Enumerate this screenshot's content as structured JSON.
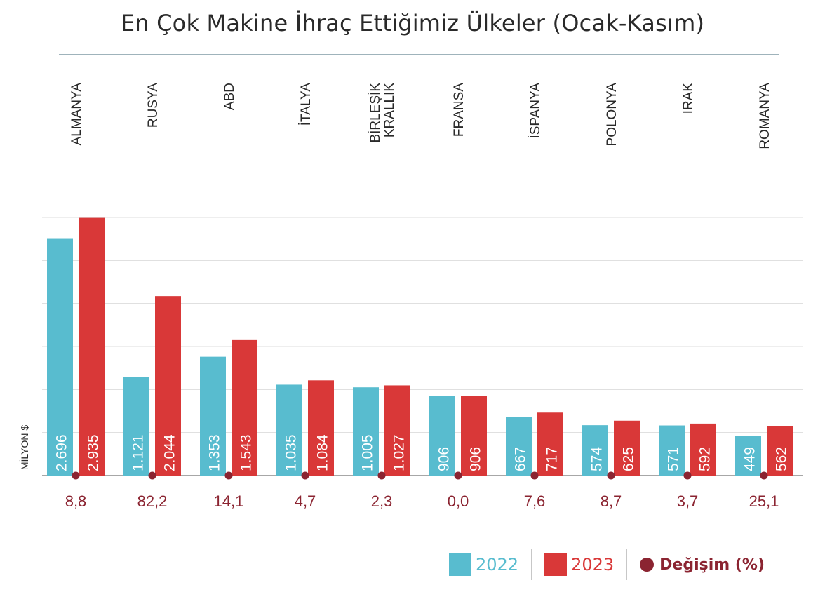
{
  "title": "En Çok Makine İhraç Ettiğimiz Ülkeler (Ocak-Kasım)",
  "colors": {
    "series_2022": "#58bccf",
    "series_2023": "#d93838",
    "change": "#8b2431",
    "grid": "#dcdcdc",
    "axis": "#8a8a8a",
    "label_text": "#2a2a2a"
  },
  "legend": {
    "placement": "bottom-right",
    "items": [
      "2022",
      "2023",
      "Değişim (%)"
    ]
  },
  "chart_data": {
    "type": "bar",
    "title": "En Çok Makine İhraç Ettiğimiz Ülkeler (Ocak-Kasım)",
    "ylabel": "MİLYON $",
    "xlabel": "",
    "ylim": [
      0,
      3000
    ],
    "grid": true,
    "categories": [
      [
        "ALMANYA"
      ],
      [
        "RUSYA"
      ],
      [
        "ABD"
      ],
      [
        "İTALYA"
      ],
      [
        "BİRLEŞİK",
        "KRALLIK"
      ],
      [
        "FRANSA"
      ],
      [
        "İSPANYA"
      ],
      [
        "POLONYA"
      ],
      [
        "IRAK"
      ],
      [
        "ROMANYA"
      ]
    ],
    "series": [
      {
        "name": "2022",
        "values": [
          2696,
          1121,
          1353,
          1035,
          1005,
          906,
          667,
          574,
          571,
          449
        ],
        "labels": [
          "2.696",
          "1.121",
          "1.353",
          "1.035",
          "1.005",
          "906",
          "667",
          "574",
          "571",
          "449"
        ]
      },
      {
        "name": "2023",
        "values": [
          2935,
          2044,
          1543,
          1084,
          1027,
          906,
          717,
          625,
          592,
          562
        ],
        "labels": [
          "2.935",
          "2.044",
          "1.543",
          "1.084",
          "1.027",
          "906",
          "717",
          "625",
          "592",
          "562"
        ]
      }
    ],
    "change_pct": {
      "name": "Değişim (%)",
      "values": [
        8.8,
        82.2,
        14.1,
        4.7,
        2.3,
        0.0,
        7.6,
        8.7,
        3.7,
        25.1
      ],
      "labels": [
        "8,8",
        "82,2",
        "14,1",
        "4,7",
        "2,3",
        "0,0",
        "7,6",
        "8,7",
        "3,7",
        "25,1"
      ]
    }
  }
}
